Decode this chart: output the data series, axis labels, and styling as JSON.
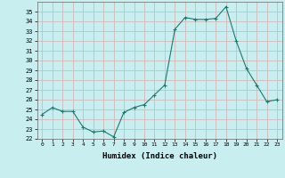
{
  "title": "",
  "xlabel": "Humidex (Indice chaleur)",
  "ylabel": "",
  "x": [
    0,
    1,
    2,
    3,
    4,
    5,
    6,
    7,
    8,
    9,
    10,
    11,
    12,
    13,
    14,
    15,
    16,
    17,
    18,
    19,
    20,
    21,
    22,
    23
  ],
  "y": [
    24.5,
    25.2,
    24.8,
    24.8,
    23.2,
    22.7,
    22.8,
    22.2,
    24.7,
    25.2,
    25.5,
    26.5,
    27.5,
    33.2,
    34.4,
    34.2,
    34.2,
    34.3,
    35.5,
    32.0,
    29.2,
    27.5,
    25.8,
    26.0
  ],
  "line_color": "#1a7a6e",
  "marker": "+",
  "bg_color": "#c8eef0",
  "grid_color": "#d4b8b8",
  "ylim": [
    22,
    36
  ],
  "yticks": [
    22,
    23,
    24,
    25,
    26,
    27,
    28,
    29,
    30,
    31,
    32,
    33,
    34,
    35
  ],
  "xtick_labels": [
    "0",
    "1",
    "2",
    "3",
    "4",
    "5",
    "6",
    "7",
    "8",
    "9",
    "10",
    "11",
    "12",
    "13",
    "14",
    "15",
    "16",
    "17",
    "18",
    "19",
    "20",
    "21",
    "22",
    "23"
  ]
}
